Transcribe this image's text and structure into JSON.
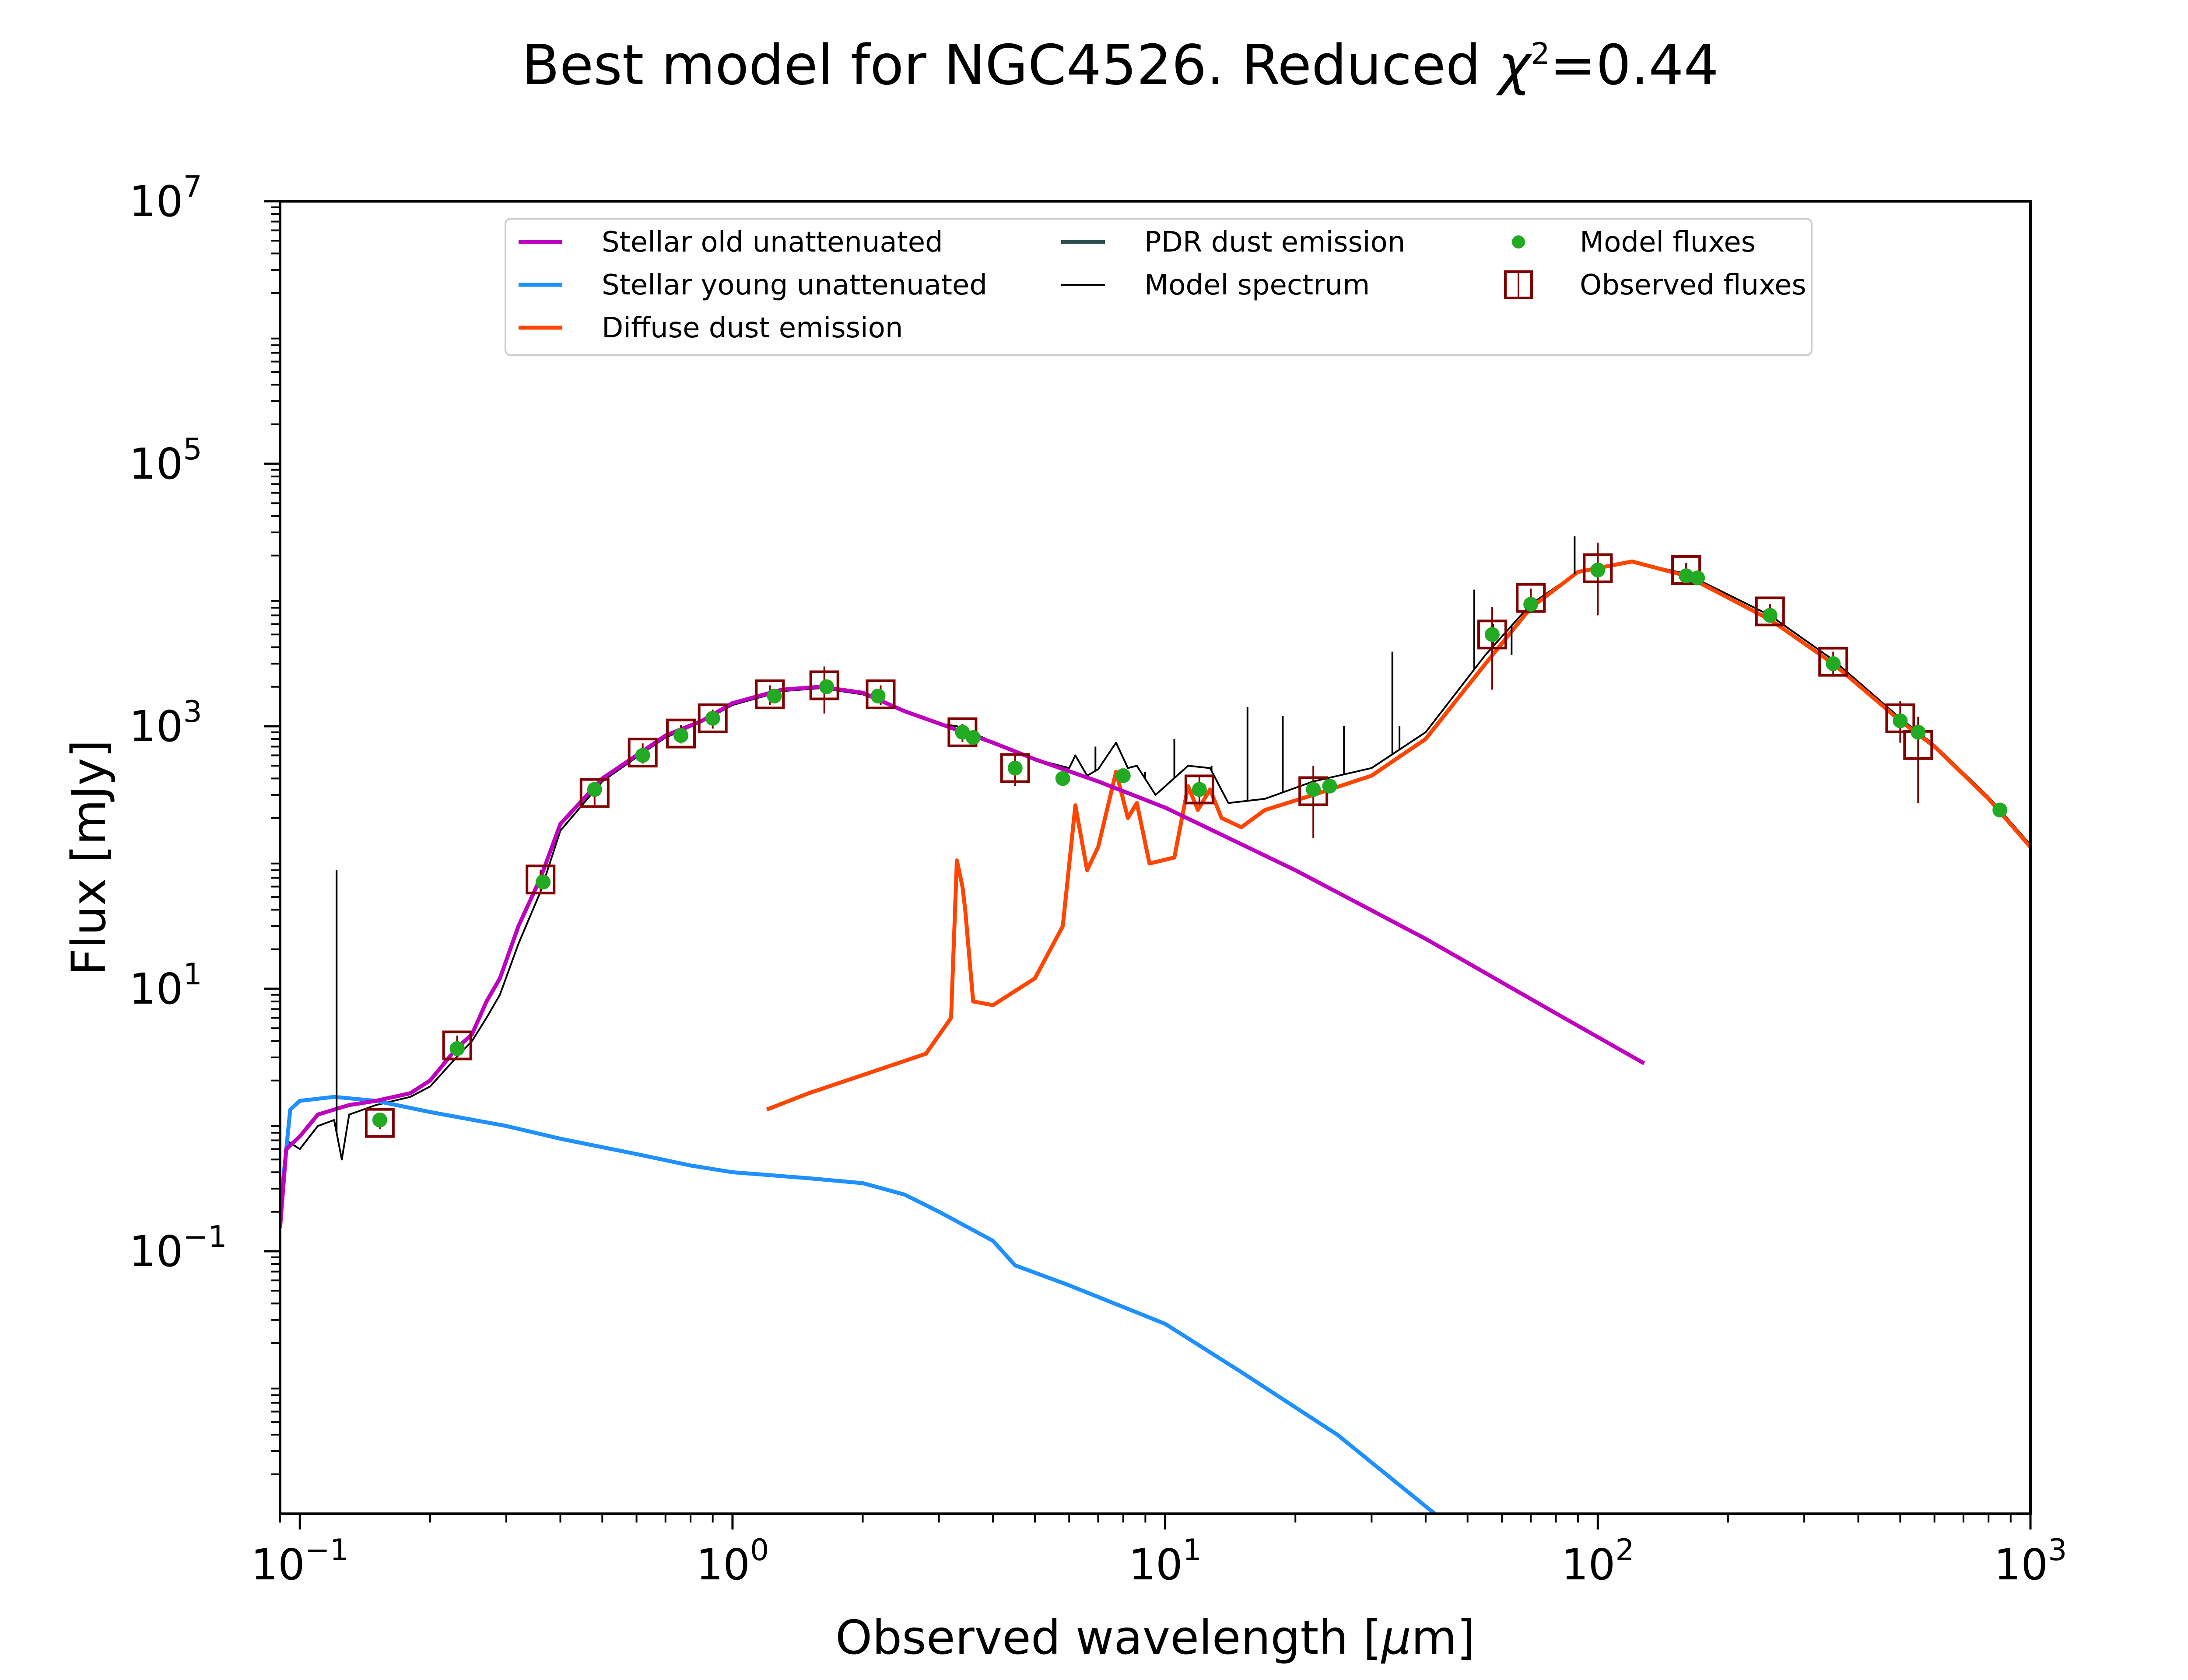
{
  "chart_data": {
    "type": "line",
    "title": "Best model for NGC4526. Reduced χ²=0.44",
    "title_parts": {
      "before": "Best model for NGC4526. Reduced ",
      "chi": "χ",
      "sup": "2",
      "after": "=0.44"
    },
    "xlabel": "Observed wavelength [μm]",
    "xlabel_parts": {
      "before": "Observed wavelength [",
      "mu": "μ",
      "after": "m]"
    },
    "ylabel": "Flux [mJy]",
    "x_scale": "log",
    "y_scale": "log",
    "xlim": [
      0.09,
      1000
    ],
    "ylim": [
      0.001,
      10000000
    ],
    "x_ticks": [
      {
        "value": 0.1,
        "base": "10",
        "exp": "−1"
      },
      {
        "value": 1,
        "base": "10",
        "exp": "0"
      },
      {
        "value": 10,
        "base": "10",
        "exp": "1"
      },
      {
        "value": 100,
        "base": "10",
        "exp": "2"
      },
      {
        "value": 1000,
        "base": "10",
        "exp": "3"
      }
    ],
    "y_ticks": [
      {
        "value": 0.1,
        "base": "10",
        "exp": "−1"
      },
      {
        "value": 10,
        "base": "10",
        "exp": "1"
      },
      {
        "value": 1000,
        "base": "10",
        "exp": "3"
      },
      {
        "value": 100000,
        "base": "10",
        "exp": "5"
      },
      {
        "value": 10000000,
        "base": "10",
        "exp": "7"
      }
    ],
    "grid": false,
    "legend_position": "top",
    "legend": [
      {
        "label": "Stellar old unattenuated",
        "color": "#bf00bf",
        "kind": "line"
      },
      {
        "label": "Stellar young unattenuated",
        "color": "#1e90ff",
        "kind": "line"
      },
      {
        "label": "Diffuse dust emission",
        "color": "#ff4500",
        "kind": "line"
      },
      {
        "label": "PDR dust emission",
        "color": "#2f4f4f",
        "kind": "line"
      },
      {
        "label": "Model spectrum",
        "color": "#000000",
        "kind": "thin-line"
      },
      {
        "label": "Model fluxes",
        "color": "#22aa22",
        "kind": "dot"
      },
      {
        "label": "Observed fluxes",
        "color": "#800000",
        "kind": "square"
      }
    ],
    "series": [
      {
        "name": "Stellar old unattenuated",
        "color": "#bf00bf",
        "points": [
          [
            0.09,
            0.15
          ],
          [
            0.093,
            0.6
          ],
          [
            0.1,
            0.75
          ],
          [
            0.11,
            1.1
          ],
          [
            0.13,
            1.3
          ],
          [
            0.15,
            1.4
          ],
          [
            0.18,
            1.6
          ],
          [
            0.2,
            2.0
          ],
          [
            0.23,
            3.5
          ],
          [
            0.25,
            4.5
          ],
          [
            0.27,
            8
          ],
          [
            0.29,
            12
          ],
          [
            0.32,
            30
          ],
          [
            0.36,
            70
          ],
          [
            0.4,
            180
          ],
          [
            0.5,
            400
          ],
          [
            0.6,
            600
          ],
          [
            0.7,
            850
          ],
          [
            0.85,
            1100
          ],
          [
            1.0,
            1500
          ],
          [
            1.3,
            1900
          ],
          [
            1.6,
            2000
          ],
          [
            2.0,
            1800
          ],
          [
            2.5,
            1300
          ],
          [
            3.0,
            1050
          ],
          [
            4.0,
            750
          ],
          [
            5.0,
            560
          ],
          [
            7.0,
            380
          ],
          [
            10,
            240
          ],
          [
            20,
            80
          ],
          [
            40,
            24
          ],
          [
            80,
            6.5
          ],
          [
            128,
            2.7
          ]
        ]
      },
      {
        "name": "Stellar young unattenuated",
        "color": "#1e90ff",
        "points": [
          [
            0.09,
            0.2
          ],
          [
            0.095,
            1.2
          ],
          [
            0.1,
            1.4
          ],
          [
            0.12,
            1.5
          ],
          [
            0.15,
            1.4
          ],
          [
            0.2,
            1.15
          ],
          [
            0.3,
            0.9
          ],
          [
            0.4,
            0.72
          ],
          [
            0.6,
            0.55
          ],
          [
            0.8,
            0.45
          ],
          [
            1.0,
            0.4
          ],
          [
            1.5,
            0.36
          ],
          [
            2.0,
            0.33
          ],
          [
            2.5,
            0.27
          ],
          [
            3.0,
            0.2
          ],
          [
            4.0,
            0.12
          ],
          [
            4.5,
            0.078
          ],
          [
            6.0,
            0.055
          ],
          [
            10,
            0.028
          ],
          [
            15,
            0.012
          ],
          [
            25,
            0.004
          ],
          [
            42,
            0.001
          ]
        ]
      },
      {
        "name": "Diffuse dust emission",
        "color": "#ff4500",
        "points": [
          [
            1.2,
            1.2
          ],
          [
            1.5,
            1.6
          ],
          [
            2.0,
            2.2
          ],
          [
            2.8,
            3.2
          ],
          [
            3.2,
            6
          ],
          [
            3.3,
            95
          ],
          [
            3.4,
            60
          ],
          [
            3.45,
            40
          ],
          [
            3.6,
            8
          ],
          [
            4.0,
            7.5
          ],
          [
            5.0,
            12
          ],
          [
            5.8,
            30
          ],
          [
            6.2,
            250
          ],
          [
            6.6,
            80
          ],
          [
            7.0,
            120
          ],
          [
            7.7,
            450
          ],
          [
            8.2,
            200
          ],
          [
            8.6,
            260
          ],
          [
            9.2,
            90
          ],
          [
            10.5,
            100
          ],
          [
            11.3,
            350
          ],
          [
            11.9,
            230
          ],
          [
            12.7,
            330
          ],
          [
            13.5,
            200
          ],
          [
            15,
            170
          ],
          [
            17,
            230
          ],
          [
            22,
            300
          ],
          [
            30,
            420
          ],
          [
            40,
            800
          ],
          [
            55,
            3000
          ],
          [
            70,
            8000
          ],
          [
            90,
            15000
          ],
          [
            120,
            18000
          ],
          [
            160,
            14000
          ],
          [
            250,
            6500
          ],
          [
            350,
            3000
          ],
          [
            500,
            1100
          ],
          [
            600,
            700
          ],
          [
            800,
            280
          ],
          [
            1000,
            120
          ]
        ]
      },
      {
        "name": "Model spectrum",
        "color": "#000000",
        "points": [
          [
            0.09,
            0.2
          ],
          [
            0.093,
            0.7
          ],
          [
            0.1,
            0.6
          ],
          [
            0.11,
            0.9
          ],
          [
            0.12,
            1.0
          ],
          [
            0.125,
            0.5
          ],
          [
            0.13,
            1.1
          ],
          [
            0.15,
            1.3
          ],
          [
            0.18,
            1.5
          ],
          [
            0.2,
            1.8
          ],
          [
            0.23,
            3.0
          ],
          [
            0.25,
            4.0
          ],
          [
            0.27,
            6
          ],
          [
            0.29,
            9
          ],
          [
            0.32,
            22
          ],
          [
            0.36,
            55
          ],
          [
            0.4,
            160
          ],
          [
            0.5,
            380
          ],
          [
            0.6,
            580
          ],
          [
            0.7,
            820
          ],
          [
            0.85,
            1080
          ],
          [
            1.0,
            1450
          ],
          [
            1.3,
            1850
          ],
          [
            1.6,
            1950
          ],
          [
            2.0,
            1750
          ],
          [
            2.5,
            1300
          ],
          [
            3.0,
            1050
          ],
          [
            3.3,
            1000
          ],
          [
            4.0,
            760
          ],
          [
            5.0,
            560
          ],
          [
            6.0,
            480
          ],
          [
            6.2,
            600
          ],
          [
            6.6,
            420
          ],
          [
            7.0,
            470
          ],
          [
            7.7,
            750
          ],
          [
            8.2,
            480
          ],
          [
            8.6,
            500
          ],
          [
            9.5,
            300
          ],
          [
            11.3,
            500
          ],
          [
            12.7,
            480
          ],
          [
            14,
            260
          ],
          [
            17,
            280
          ],
          [
            22,
            380
          ],
          [
            30,
            480
          ],
          [
            40,
            900
          ],
          [
            55,
            3500
          ],
          [
            70,
            8500
          ],
          [
            90,
            15000
          ],
          [
            120,
            18000
          ],
          [
            160,
            14500
          ],
          [
            250,
            7000
          ],
          [
            350,
            3200
          ],
          [
            500,
            1150
          ],
          [
            600,
            720
          ],
          [
            800,
            290
          ],
          [
            1000,
            125
          ]
        ]
      }
    ],
    "spectrum_spikes": [
      [
        0.1216,
        80
      ],
      [
        6.9,
        700
      ],
      [
        8.99,
        450
      ],
      [
        10.5,
        800
      ],
      [
        12.8,
        500
      ],
      [
        15.5,
        1400
      ],
      [
        18.7,
        1200
      ],
      [
        25.9,
        1000
      ],
      [
        33.5,
        3700
      ],
      [
        34.8,
        1000
      ],
      [
        51.8,
        11000
      ],
      [
        57.3,
        6000
      ],
      [
        63.2,
        3500
      ],
      [
        88.4,
        28000
      ]
    ],
    "model_fluxes": [
      [
        0.153,
        1.0
      ],
      [
        0.231,
        3.5
      ],
      [
        0.365,
        65
      ],
      [
        0.48,
        330
      ],
      [
        0.62,
        600
      ],
      [
        0.76,
        850
      ],
      [
        0.9,
        1150
      ],
      [
        1.25,
        1700
      ],
      [
        1.65,
        2000
      ],
      [
        2.17,
        1700
      ],
      [
        3.4,
        900
      ],
      [
        3.6,
        820
      ],
      [
        4.5,
        480
      ],
      [
        5.8,
        400
      ],
      [
        8.0,
        420
      ],
      [
        12,
        330
      ],
      [
        22,
        330
      ],
      [
        24,
        350
      ],
      [
        57,
        5000
      ],
      [
        70,
        8500
      ],
      [
        100,
        15500
      ],
      [
        160,
        14000
      ],
      [
        170,
        13500
      ],
      [
        250,
        7000
      ],
      [
        350,
        3000
      ],
      [
        500,
        1100
      ],
      [
        550,
        900
      ],
      [
        850,
        230
      ]
    ],
    "observed_fluxes": [
      {
        "x": 0.153,
        "y": 0.95,
        "err": [
          0.85,
          1.05
        ]
      },
      {
        "x": 0.231,
        "y": 3.7,
        "err": [
          3.0,
          4.4
        ]
      },
      {
        "x": 0.36,
        "y": 68,
        "err": [
          55,
          80
        ]
      },
      {
        "x": 0.48,
        "y": 310,
        "err": [
          250,
          370
        ]
      },
      {
        "x": 0.62,
        "y": 630,
        "err": [
          520,
          740
        ]
      },
      {
        "x": 0.76,
        "y": 880,
        "err": [
          740,
          1020
        ]
      },
      {
        "x": 0.9,
        "y": 1150,
        "err": [
          960,
          1340
        ]
      },
      {
        "x": 1.22,
        "y": 1750,
        "err": [
          1450,
          2050
        ]
      },
      {
        "x": 1.63,
        "y": 2050,
        "err": [
          1250,
          2850
        ]
      },
      {
        "x": 2.2,
        "y": 1750,
        "err": [
          1450,
          2050
        ]
      },
      {
        "x": 3.4,
        "y": 900,
        "err": [
          760,
          1040
        ]
      },
      {
        "x": 4.5,
        "y": 480,
        "err": [
          350,
          610
        ]
      },
      {
        "x": 12,
        "y": 330,
        "err": [
          250,
          410
        ]
      },
      {
        "x": 22,
        "y": 320,
        "err": [
          140,
          500
        ]
      },
      {
        "x": 57,
        "y": 5000,
        "err": [
          1900,
          8100
        ]
      },
      {
        "x": 70,
        "y": 9500,
        "err": [
          7800,
          11200
        ]
      },
      {
        "x": 100,
        "y": 16000,
        "err": [
          7000,
          25000
        ]
      },
      {
        "x": 160,
        "y": 15500,
        "err": [
          13500,
          17500
        ]
      },
      {
        "x": 250,
        "y": 7500,
        "err": [
          6500,
          8500
        ]
      },
      {
        "x": 350,
        "y": 3100,
        "err": [
          2500,
          3700
        ]
      },
      {
        "x": 500,
        "y": 1150,
        "err": [
          750,
          1550
        ]
      },
      {
        "x": 550,
        "y": 720,
        "err": [
          260,
          1180
        ]
      }
    ]
  }
}
